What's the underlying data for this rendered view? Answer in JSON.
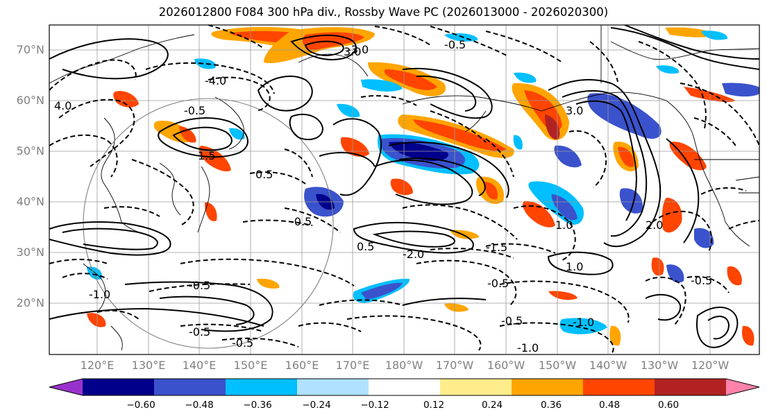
{
  "title": "2026012800 F084 300 hPa div., Rossby Wave PC (2026013000 - 2026020300)",
  "lat_labels": [
    "70°N",
    "60°N",
    "50°N",
    "40°N",
    "30°N",
    "20°N"
  ],
  "lon_labels": [
    "120°E",
    "130°E",
    "140°E",
    "150°E",
    "160°E",
    "170°E",
    "180°W",
    "170°W",
    "160°W",
    "150°W",
    "140°W",
    "130°W",
    "120°W"
  ],
  "colorbar": {
    "ticks": [
      "−0.60",
      "−0.48",
      "−0.36",
      "−0.24",
      "−0.12",
      "0.12",
      "0.24",
      "0.36",
      "0.48",
      "0.60"
    ],
    "colors": [
      "#9932CC",
      "#00008B",
      "#3A52CC",
      "#00BFFF",
      "#B0E2FF",
      "#FFFFFF",
      "#FFEC8B",
      "#FFA500",
      "#FF4500",
      "#B22222",
      "#FF82AB"
    ]
  },
  "contour_labels": [
    "4.0",
    "3.0",
    "3.0",
    "-4.0",
    "-0.5",
    "-0.5",
    "-0.5",
    "-0.5",
    "-0.5",
    "-0.5",
    "0.5",
    "0.5",
    "-1.0",
    "-1.0",
    "1.0",
    "1.5",
    "-1.5",
    "2.0",
    "-2.0",
    "-3.0",
    "-1.0",
    "-0.5",
    "-0.5",
    "1.0",
    "-0.5"
  ]
}
